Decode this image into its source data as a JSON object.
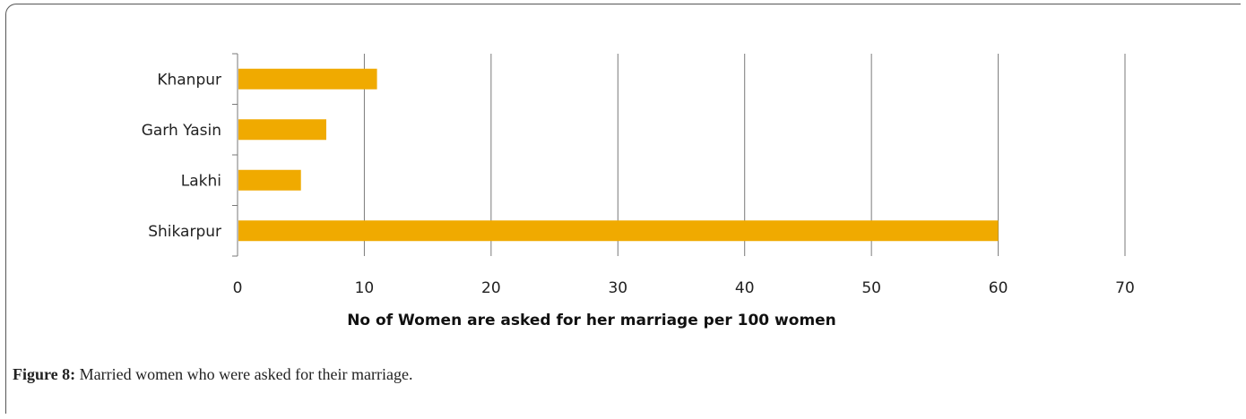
{
  "chart_data": {
    "type": "bar",
    "orientation": "horizontal",
    "categories": [
      "Khanpur",
      "Garh Yasin",
      "Lakhi",
      "Shikarpur"
    ],
    "values": [
      11,
      7,
      5,
      60
    ],
    "xlabel": "No of Women are asked  for her marriage per 100 women",
    "xlim": [
      0,
      70
    ],
    "xticks": [
      0,
      10,
      20,
      30,
      40,
      50,
      60,
      70
    ],
    "bar_color": "#F0AA00",
    "gridlines": "vertical"
  },
  "caption": {
    "label": "Figure 8:",
    "text": " Married women who were asked for their marriage."
  }
}
